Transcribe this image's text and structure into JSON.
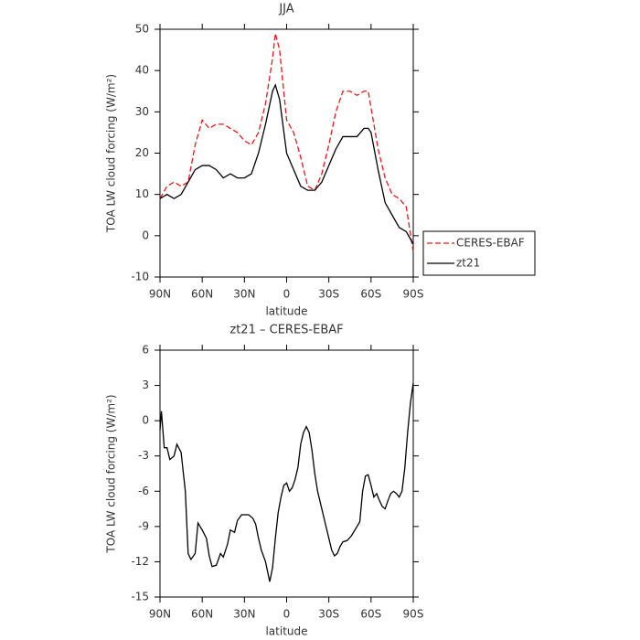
{
  "chart_data": [
    {
      "type": "line",
      "title": "JJA",
      "xlabel": "latitude",
      "ylabel": "TOA LW cloud forcing (W/m²)",
      "x": [
        90,
        85,
        80,
        75,
        70,
        65,
        60,
        55,
        50,
        45,
        40,
        35,
        30,
        25,
        20,
        15,
        10,
        8,
        5,
        0,
        -5,
        -10,
        -15,
        -20,
        -25,
        -30,
        -35,
        -40,
        -45,
        -50,
        -55,
        -58,
        -60,
        -65,
        -70,
        -75,
        -80,
        -85,
        -90
      ],
      "series": [
        {
          "name": "CERES-EBAF",
          "color": "#e41a1c",
          "dash": true,
          "values": [
            9,
            12,
            13,
            12,
            13,
            22,
            28,
            26,
            27,
            27,
            26,
            25,
            23,
            22,
            25,
            32,
            43,
            49,
            45,
            28,
            25,
            19,
            12,
            11,
            15,
            22,
            30,
            35,
            35,
            34,
            35,
            35,
            31,
            21,
            14,
            10,
            9,
            7,
            -4
          ]
        },
        {
          "name": "zt21",
          "color": "#000000",
          "dash": false,
          "values": [
            9,
            10,
            9,
            10,
            13,
            16,
            17,
            17,
            16,
            14,
            15,
            14,
            14,
            15,
            20,
            27,
            35,
            36.5,
            33,
            20,
            16,
            12,
            11,
            11,
            13,
            17,
            21,
            24,
            24,
            24,
            26,
            26,
            25,
            16,
            8,
            5,
            2,
            1,
            -2
          ]
        }
      ],
      "xlim": [
        90,
        -90
      ],
      "xticks": [
        {
          "value": 90,
          "label": "90N"
        },
        {
          "value": 60,
          "label": "60N"
        },
        {
          "value": 30,
          "label": "30N"
        },
        0,
        {
          "value": -30,
          "label": "30S"
        },
        {
          "value": -60,
          "label": "60S"
        },
        {
          "value": -90,
          "label": "90S"
        }
      ],
      "ylim": [
        -10,
        50
      ],
      "yticks": [
        -10,
        0,
        10,
        20,
        30,
        40,
        50
      ]
    },
    {
      "type": "line",
      "title": "zt21 – CERES-EBAF",
      "xlabel": "latitude",
      "ylabel": "TOA LW cloud forcing (W/m²)",
      "x": [
        90,
        89,
        87,
        85,
        83,
        80,
        78,
        75,
        72,
        70,
        68,
        65,
        63,
        60,
        57,
        55,
        53,
        50,
        47,
        45,
        42,
        40,
        37,
        35,
        32,
        30,
        27,
        24,
        22,
        20,
        18,
        15,
        12,
        10,
        8,
        6,
        4,
        2,
        0,
        -2,
        -4,
        -6,
        -8,
        -10,
        -12,
        -14,
        -16,
        -18,
        -20,
        -22,
        -25,
        -28,
        -30,
        -32,
        -34,
        -36,
        -38,
        -40,
        -43,
        -46,
        -49,
        -52,
        -54,
        -56,
        -58,
        -60,
        -62,
        -64,
        -66,
        -68,
        -70,
        -72,
        -74,
        -76,
        -78,
        -80,
        -82,
        -84,
        -86,
        -88,
        -90
      ],
      "series": [
        {
          "color": "#000000",
          "dash": false,
          "values": [
            -0.8,
            0.8,
            -2.3,
            -2.3,
            -3.3,
            -3,
            -2,
            -2.7,
            -6,
            -11.3,
            -11.8,
            -11.3,
            -8.7,
            -9.3,
            -10,
            -11.5,
            -12.4,
            -12.3,
            -11.3,
            -11.6,
            -10.5,
            -9.3,
            -9.5,
            -8.5,
            -8,
            -8,
            -8,
            -8.3,
            -8.8,
            -10,
            -11,
            -12,
            -13.7,
            -12.5,
            -10,
            -7.8,
            -6.5,
            -5.5,
            -5.3,
            -6,
            -5.7,
            -5,
            -4,
            -2,
            -1,
            -0.5,
            -1,
            -2.5,
            -4.5,
            -6,
            -7.5,
            -9,
            -10,
            -11,
            -11.5,
            -11.3,
            -10.7,
            -10.3,
            -10.2,
            -9.8,
            -9.2,
            -8.6,
            -6,
            -4.7,
            -4.6,
            -5.5,
            -6.5,
            -6.2,
            -6.8,
            -7.3,
            -7.5,
            -6.8,
            -6.2,
            -6,
            -6.2,
            -6.5,
            -6,
            -4,
            -1,
            1.5,
            3.2
          ]
        }
      ],
      "xlim": [
        90,
        -90
      ],
      "xticks": [
        {
          "value": 90,
          "label": "90N"
        },
        {
          "value": 60,
          "label": "60N"
        },
        {
          "value": 30,
          "label": "30N"
        },
        0,
        {
          "value": -30,
          "label": "30S"
        },
        {
          "value": -60,
          "label": "60S"
        },
        {
          "value": -90,
          "label": "90S"
        }
      ],
      "ylim": [
        -15,
        6
      ],
      "yticks": [
        -15,
        -12,
        -9,
        -6,
        -3,
        0,
        3,
        6
      ]
    }
  ]
}
